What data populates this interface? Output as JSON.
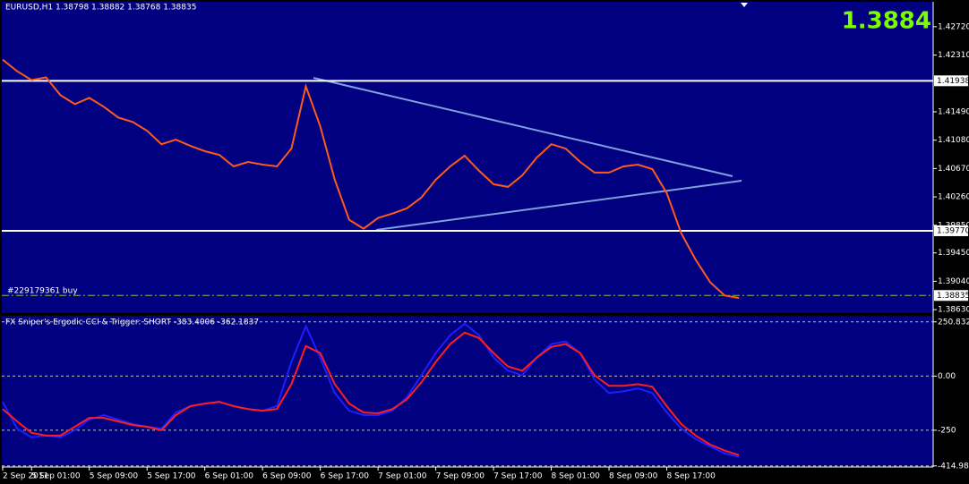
{
  "chart_data": [
    {
      "type": "line",
      "title": "EURUSD,H1 1.38798 1.38882 1.38768 1.38835",
      "annotations": [
        "1.3884",
        "#229179361 buy"
      ],
      "ylim": [
        1.3858,
        1.4308
      ],
      "yticks": [
        {
          "value": 1.4272,
          "label": "1.42720"
        },
        {
          "value": 1.4231,
          "label": "1.42310"
        },
        {
          "value": 1.4149,
          "label": "1.41490"
        },
        {
          "value": 1.4108,
          "label": "1.41080"
        },
        {
          "value": 1.4067,
          "label": "1.40670"
        },
        {
          "value": 1.4026,
          "label": "1.40260"
        },
        {
          "value": 1.3985,
          "label": "1.39850"
        },
        {
          "value": 1.3945,
          "label": "1.39450"
        },
        {
          "value": 1.3904,
          "label": "1.39040"
        },
        {
          "value": 1.3863,
          "label": "1.38630"
        }
      ],
      "levels": [
        {
          "value": 1.41938,
          "label": "1.41938",
          "color": "#ffffff"
        },
        {
          "value": 1.3977,
          "label": "1.39770",
          "color": "#ffffff"
        },
        {
          "value": 1.38835,
          "label": "1.38835",
          "color": "#7fbf3f"
        }
      ],
      "series": [
        {
          "name": "EURUSD",
          "color": "#ff5a1e",
          "values": [
            1.42244,
            1.42077,
            1.41948,
            1.41987,
            1.4173,
            1.41601,
            1.41691,
            1.41563,
            1.41408,
            1.41344,
            1.41215,
            1.41022,
            1.41087,
            1.40997,
            1.4092,
            1.40868,
            1.40701,
            1.40765,
            1.40727,
            1.40701,
            1.40958,
            1.41858,
            1.4128,
            1.40508,
            1.39929,
            1.39801,
            1.39955,
            1.40019,
            1.40096,
            1.40251,
            1.40508,
            1.40701,
            1.40855,
            1.40637,
            1.40444,
            1.40405,
            1.40573,
            1.4083,
            1.41022,
            1.40958,
            1.40765,
            1.40611,
            1.40611,
            1.40701,
            1.40727,
            1.40662,
            1.40315,
            1.39736,
            1.39351,
            1.39029,
            1.38836,
            1.38798
          ]
        }
      ]
    },
    {
      "type": "line",
      "title": "FX Sniper's Ergodic CCI & Trigger: SHORT -383.4006 -362.1837",
      "categories": [
        "2 Sep 2011",
        null,
        "5 Sep 01:00",
        null,
        null,
        null,
        "5 Sep 09:00",
        null,
        null,
        null,
        "5 Sep 17:00",
        null,
        null,
        null,
        "6 Sep 01:00",
        null,
        null,
        null,
        "6 Sep 09:00",
        null,
        null,
        null,
        "6 Sep 17:00",
        null,
        null,
        null,
        "7 Sep 01:00",
        null,
        null,
        null,
        "7 Sep 09:00",
        null,
        null,
        null,
        "7 Sep 17:00",
        null,
        null,
        null,
        "8 Sep 01:00",
        null,
        null,
        null,
        "8 Sep 09:00",
        null,
        null,
        null,
        "8 Sep 17:00",
        null,
        null,
        null,
        null,
        null
      ],
      "ylim": [
        -420,
        283
      ],
      "yticks": [
        {
          "value": 250.832,
          "label": "250.832"
        },
        {
          "value": 0,
          "label": "0.00"
        },
        -250,
        -414.983
      ],
      "grid": true,
      "series": [
        {
          "name": "Ergodic CCI",
          "color": "#1e1eff",
          "values": [
            -119,
            -242,
            -283,
            -275,
            -283,
            -250,
            -201,
            -180,
            -201,
            -221,
            -234,
            -242,
            -168,
            -139,
            -127,
            -119,
            -139,
            -152,
            -160,
            -139,
            66,
            230,
            86,
            -78,
            -160,
            -180,
            -180,
            -160,
            -98,
            4,
            107,
            189,
            242,
            189,
            86,
            25,
            4,
            86,
            148,
            160,
            107,
            -16,
            -78,
            -70,
            -57,
            -78,
            -168,
            -242,
            -291,
            -324,
            -357,
            -373
          ]
        },
        {
          "name": "Trigger",
          "color": "#ff1e1e",
          "values": [
            -152,
            -209,
            -262,
            -275,
            -275,
            -234,
            -193,
            -193,
            -209,
            -226,
            -234,
            -250,
            -180,
            -139,
            -127,
            -119,
            -139,
            -152,
            -160,
            -152,
            -37,
            139,
            107,
            -37,
            -127,
            -168,
            -172,
            -152,
            -107,
            -29,
            66,
            148,
            201,
            176,
            107,
            45,
            25,
            86,
            135,
            148,
            107,
            4,
            -45,
            -45,
            -37,
            -49,
            -139,
            -221,
            -275,
            -316,
            -344,
            -365
          ]
        }
      ]
    }
  ]
}
